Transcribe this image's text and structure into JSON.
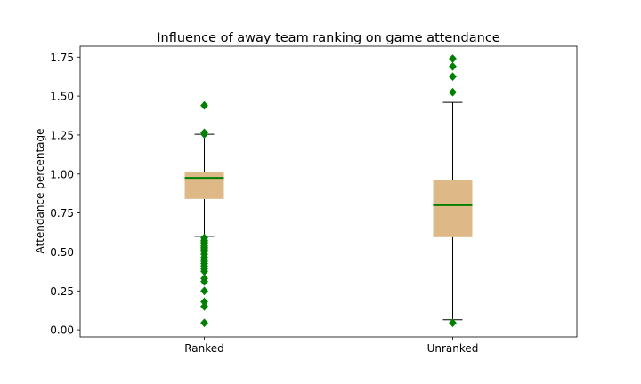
{
  "chart_data": {
    "type": "box",
    "title": "Influence of away team ranking on game attendance",
    "xlabel": "",
    "ylabel": "Attendance percentage",
    "categories": [
      "Ranked",
      "Unranked"
    ],
    "ylim": [
      -0.045,
      1.82
    ],
    "yticks": [
      "0.00",
      "0.25",
      "0.50",
      "0.75",
      "1.00",
      "1.25",
      "1.50",
      "1.75"
    ],
    "grid": false,
    "boxes": [
      {
        "name": "Ranked",
        "whisker_low": 0.6,
        "q1": 0.84,
        "median": 0.975,
        "q3": 1.01,
        "whisker_high": 1.255,
        "outliers": [
          1.44,
          1.265,
          1.255,
          0.59,
          0.575,
          0.565,
          0.555,
          0.54,
          0.53,
          0.52,
          0.51,
          0.5,
          0.485,
          0.465,
          0.45,
          0.44,
          0.425,
          0.41,
          0.39,
          0.375,
          0.33,
          0.31,
          0.25,
          0.18,
          0.15,
          0.045
        ]
      },
      {
        "name": "Unranked",
        "whisker_low": 0.065,
        "q1": 0.595,
        "median": 0.8,
        "q3": 0.96,
        "whisker_high": 1.46,
        "outliers": [
          1.74,
          1.69,
          1.625,
          1.525,
          0.045
        ]
      }
    ],
    "colors": {
      "box_fill": "#deb887",
      "median": "#008000",
      "outlier": "#008000",
      "line": "#000000"
    }
  }
}
